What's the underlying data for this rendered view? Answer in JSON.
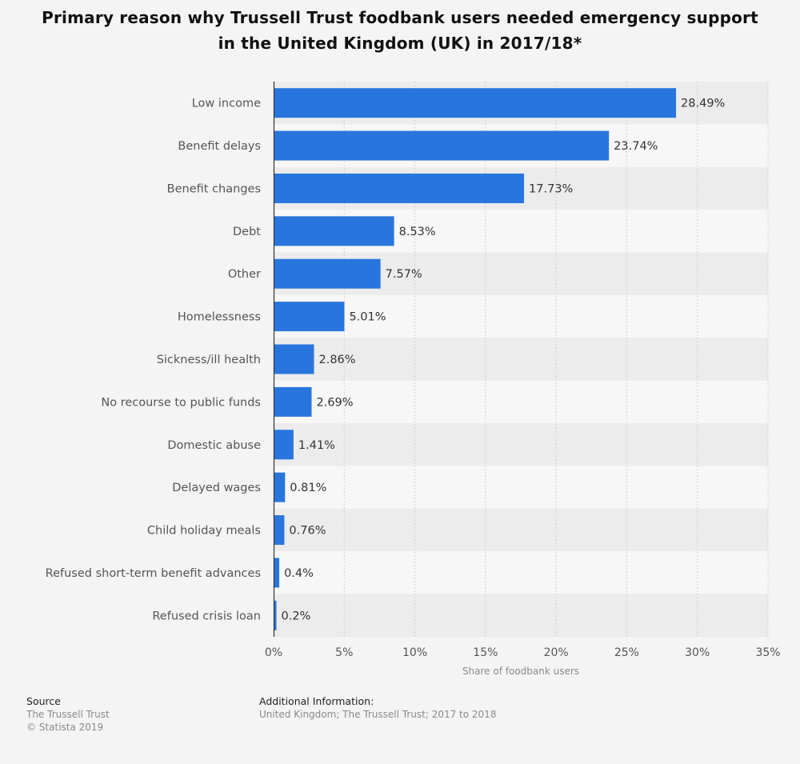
{
  "title": "Primary reason why Trussell Trust foodbank users needed emergency support in the United Kingdom (UK) in 2017/18*",
  "colors": {
    "bar": "#2876dd",
    "band_dark": "#ececec",
    "band_light": "#f7f7f7",
    "grid": "#c8c8c8",
    "axis": "#333333",
    "label": "#555555",
    "value": "#333333"
  },
  "chart_data": {
    "type": "bar",
    "orientation": "horizontal",
    "title": "Primary reason why Trussell Trust foodbank users needed emergency support in the United Kingdom (UK) in 2017/18*",
    "xlabel": "Share of foodbank users",
    "ylabel": "",
    "categories": [
      "Low income",
      "Benefit delays",
      "Benefit changes",
      "Debt",
      "Other",
      "Homelessness",
      "Sickness/ill health",
      "No recourse to public funds",
      "Domestic abuse",
      "Delayed wages",
      "Child holiday meals",
      "Refused short-term benefit advances",
      "Refused crisis loan"
    ],
    "values": [
      28.49,
      23.74,
      17.73,
      8.53,
      7.57,
      5.01,
      2.86,
      2.69,
      1.41,
      0.81,
      0.76,
      0.4,
      0.2
    ],
    "value_labels": [
      "28.49%",
      "23.74%",
      "17.73%",
      "8.53%",
      "7.57%",
      "5.01%",
      "2.86%",
      "2.69%",
      "1.41%",
      "0.81%",
      "0.76%",
      "0.4%",
      "0.2%"
    ],
    "xlim": [
      0,
      35
    ],
    "xticks": [
      0,
      5,
      10,
      15,
      20,
      25,
      30,
      35
    ],
    "xtick_labels": [
      "0%",
      "5%",
      "10%",
      "15%",
      "20%",
      "25%",
      "30%",
      "35%"
    ],
    "grid": true,
    "legend": false
  },
  "footer": {
    "source_heading": "Source",
    "source_lines": [
      "The Trussell Trust",
      "© Statista 2019"
    ],
    "info_heading": "Additional Information:",
    "info_text": "United Kingdom; The Trussell Trust; 2017 to 2018"
  }
}
